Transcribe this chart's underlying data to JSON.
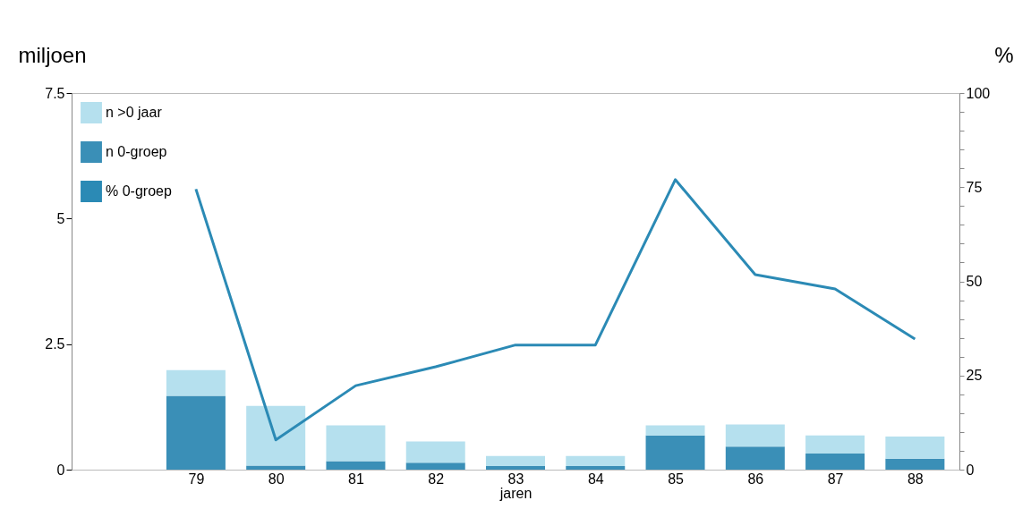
{
  "chart_data": {
    "type": "bar",
    "stacked": true,
    "xlabel": "jaren",
    "ylabel": "miljoen",
    "y2label": "%",
    "categories": [
      "79",
      "80",
      "81",
      "82",
      "83",
      "84",
      "85",
      "86",
      "87",
      "88"
    ],
    "series": [
      {
        "name": "n 0-groep",
        "color": "#3a8fb7",
        "values": [
          1.47,
          0.08,
          0.17,
          0.14,
          0.07,
          0.07,
          0.68,
          0.46,
          0.32,
          0.22
        ]
      },
      {
        "name": "n >0 jaar",
        "color": "#b5e0ee",
        "values": [
          0.51,
          1.19,
          0.71,
          0.42,
          0.2,
          0.2,
          0.2,
          0.44,
          0.36,
          0.44
        ]
      },
      {
        "name": "% 0-groep",
        "color": "#2b8ab5",
        "type": "line",
        "axis": "y2",
        "values": [
          74.5,
          7.9,
          22.3,
          27.3,
          33.1,
          33.1,
          77,
          51.8,
          48,
          34.7
        ]
      }
    ],
    "ylim": [
      0,
      7.5
    ],
    "yticks": [
      0,
      2.5,
      5,
      7.5
    ],
    "y2lim": [
      0,
      100
    ],
    "y2ticks": [
      0,
      {
        "value": 5,
        "label": null
      },
      {
        "value": 10,
        "label": null
      },
      {
        "value": 15,
        "label": null
      },
      {
        "value": 20,
        "label": null
      },
      25,
      {
        "value": 30,
        "label": null
      },
      {
        "value": 35,
        "label": null
      },
      {
        "value": 40,
        "label": null
      },
      {
        "value": 45,
        "label": null
      },
      50,
      {
        "value": 55,
        "label": null
      },
      {
        "value": 60,
        "label": null
      },
      {
        "value": 65,
        "label": null
      },
      {
        "value": 70,
        "label": null
      },
      75,
      {
        "value": 80,
        "label": null
      },
      {
        "value": 85,
        "label": null
      },
      {
        "value": 90,
        "label": null
      },
      {
        "value": 95,
        "label": null
      },
      100
    ],
    "legend": "top left",
    "grid": false
  }
}
